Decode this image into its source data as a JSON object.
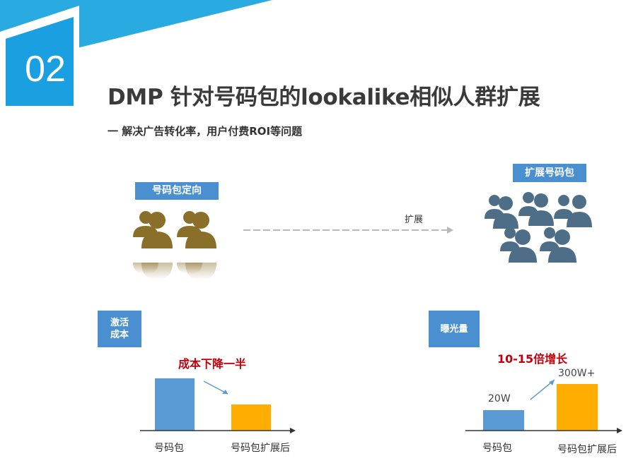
{
  "header": {
    "slide_number": "02",
    "title": "DMP 针对号码包的lookalike相似人群扩展",
    "subtitle": "一 解决广告转化率，用户付费ROI等问题"
  },
  "targeting": {
    "label": "号码包定向",
    "icon": "people-group-icon",
    "color": "#8a6f2a"
  },
  "flow": {
    "arrow_label": "扩展"
  },
  "expanded": {
    "label": "扩展号码包",
    "icon": "people-crowd-icon",
    "color": "#4e6e88"
  },
  "cost_chart": {
    "side_label_line1": "激活",
    "side_label_line2": "成本",
    "headline": "成本下降一半",
    "categories": [
      "号码包",
      "号码包扩展后"
    ]
  },
  "exposure_chart": {
    "side_label": "曝光量",
    "headline": "10-15倍增长",
    "categories": [
      "号码包",
      "号码包扩展后"
    ],
    "value_labels": [
      "20W",
      "300W+"
    ]
  },
  "colors": {
    "accent_blue": "#4a90d0",
    "bar_blue": "#5b9bd5",
    "bar_orange": "#ffae00",
    "highlight_red": "#c0000b"
  }
}
